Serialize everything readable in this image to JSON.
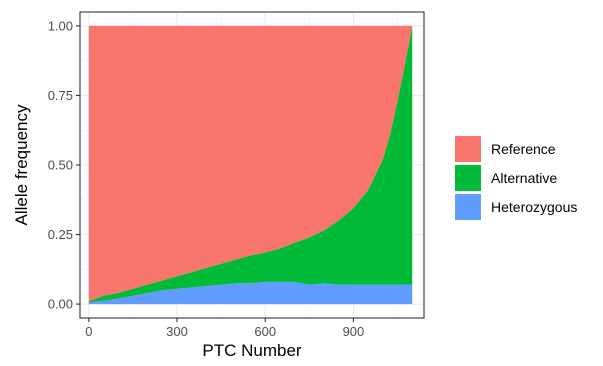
{
  "chart_data": {
    "type": "area",
    "stacked": true,
    "xlabel": "PTC Number",
    "ylabel": "Allele frequency",
    "xlim": [
      -30,
      1140
    ],
    "ylim": [
      -0.05,
      1.05
    ],
    "x_ticks": [
      0,
      300,
      600,
      900
    ],
    "x_tick_labels": [
      "0",
      "300",
      "600",
      "900"
    ],
    "y_ticks": [
      0,
      0.25,
      0.5,
      0.75,
      1.0
    ],
    "y_tick_labels": [
      "0.00",
      "0.25",
      "0.50",
      "0.75",
      "1.00"
    ],
    "grid": true,
    "legend_position": "right",
    "x": [
      0,
      25,
      50,
      100,
      150,
      200,
      250,
      300,
      350,
      400,
      450,
      500,
      550,
      600,
      650,
      700,
      750,
      800,
      850,
      900,
      950,
      1000,
      1025,
      1050,
      1075,
      1100
    ],
    "series": [
      {
        "name": "Reference",
        "color": "#F8766D",
        "values": [
          0.99,
          0.98,
          0.97,
          0.96,
          0.945,
          0.93,
          0.915,
          0.9,
          0.885,
          0.87,
          0.855,
          0.84,
          0.825,
          0.815,
          0.8,
          0.78,
          0.76,
          0.735,
          0.7,
          0.655,
          0.59,
          0.48,
          0.39,
          0.27,
          0.14,
          0.0
        ]
      },
      {
        "name": "Alternative",
        "color": "#00BA38",
        "values": [
          0.005,
          0.01,
          0.018,
          0.02,
          0.025,
          0.03,
          0.035,
          0.045,
          0.055,
          0.065,
          0.075,
          0.085,
          0.1,
          0.105,
          0.12,
          0.14,
          0.17,
          0.19,
          0.23,
          0.275,
          0.34,
          0.45,
          0.54,
          0.66,
          0.79,
          0.93
        ]
      },
      {
        "name": "Heterozygous",
        "color": "#619CFF",
        "values": [
          0.005,
          0.01,
          0.012,
          0.02,
          0.03,
          0.04,
          0.05,
          0.055,
          0.06,
          0.065,
          0.07,
          0.075,
          0.075,
          0.08,
          0.08,
          0.08,
          0.07,
          0.075,
          0.07,
          0.07,
          0.07,
          0.07,
          0.07,
          0.07,
          0.07,
          0.07
        ]
      }
    ]
  }
}
